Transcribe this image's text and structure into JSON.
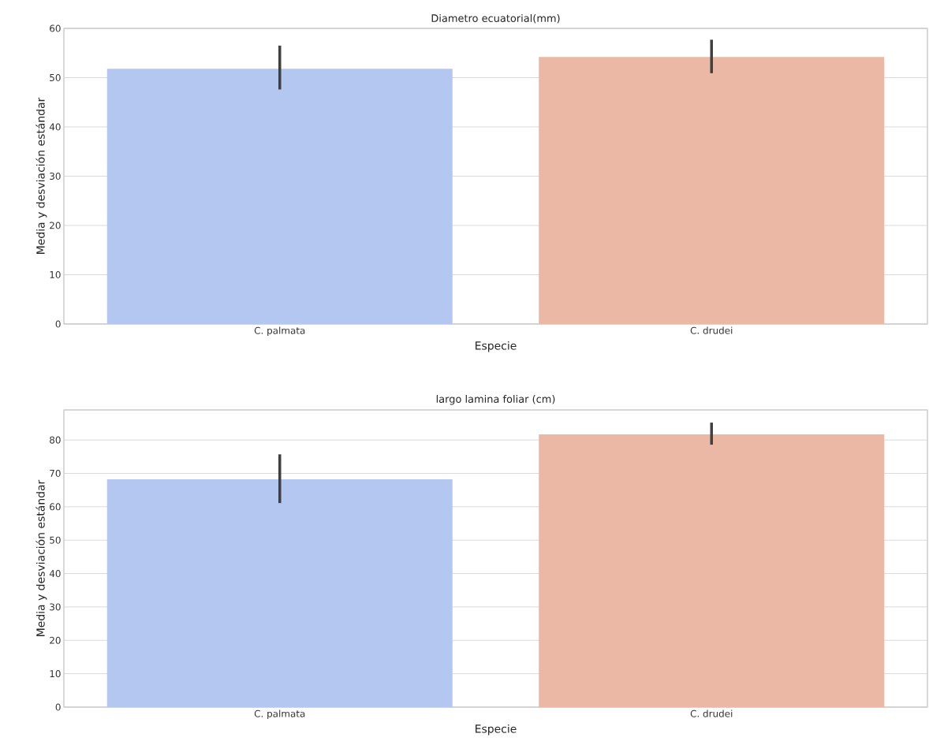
{
  "chart_data": [
    {
      "type": "bar",
      "title": "Diametro ecuatorial(mm)",
      "xlabel": "Especie",
      "ylabel": "Media y desviación estándar",
      "categories": [
        "C. palmata",
        "C. drudei"
      ],
      "values": [
        51.8,
        54.2
      ],
      "colors": [
        "#b3c7f0",
        "#eab8a5"
      ],
      "errors": [
        [
          47.6,
          56.5
        ],
        [
          50.9,
          57.7
        ]
      ],
      "ylim": [
        0,
        60
      ],
      "yticks": [
        0,
        10,
        20,
        30,
        40,
        50,
        60
      ],
      "grid": "y"
    },
    {
      "type": "bar",
      "title": "largo lamina foliar (cm)",
      "xlabel": "Especie",
      "ylabel": "Media y desviación estándar",
      "categories": [
        "C. palmata",
        "C. drudei"
      ],
      "values": [
        68.2,
        81.7
      ],
      "colors": [
        "#b3c7f0",
        "#eab8a5"
      ],
      "errors": [
        [
          61.1,
          75.7
        ],
        [
          78.6,
          85.2
        ]
      ],
      "ylim": [
        0,
        89
      ],
      "yticks": [
        0,
        10,
        20,
        30,
        40,
        50,
        60,
        70,
        80
      ],
      "grid": "y"
    }
  ]
}
